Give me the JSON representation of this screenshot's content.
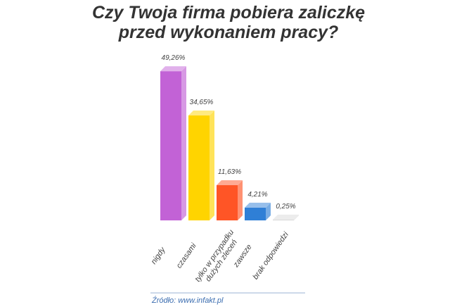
{
  "chart_data": {
    "type": "bar3d",
    "title": "Czy Twoja firma pobiera zaliczkę przed wykonaniem pracy?",
    "categories": [
      "nigdy",
      "czasami",
      "tylko w przypadku dużych zleceń",
      "zawsze",
      "brak odpowiedzi"
    ],
    "values": [
      49.26,
      34.65,
      11.63,
      4.21,
      0.25
    ],
    "value_labels": [
      "49,26%",
      "34,65%",
      "11,63%",
      "4,21%",
      "0,25%"
    ],
    "colors": [
      "#c262d6",
      "#ffd400",
      "#ff5526",
      "#2f7fd6",
      "#d8d8d8"
    ],
    "source": "Źródło: www.infakt.pl"
  }
}
